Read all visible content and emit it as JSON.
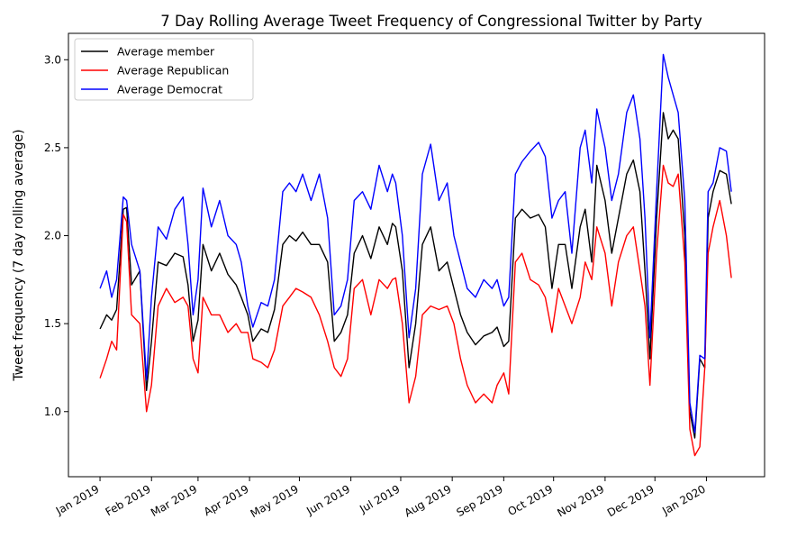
{
  "chart_data": {
    "type": "line",
    "title": "7 Day Rolling Average Tweet Frequency of Congressional Twitter by Party",
    "xlabel": "",
    "ylabel": "Tweet frequency (7 day rolling average)",
    "ylim": [
      0.63,
      3.15
    ],
    "xlim": [
      "2018-12-13",
      "2020-02-05"
    ],
    "yticks": [
      1.0,
      1.5,
      2.0,
      2.5,
      3.0
    ],
    "ytick_labels": [
      "1.0",
      "1.5",
      "2.0",
      "2.5",
      "3.0"
    ],
    "xticks": [
      "2019-01-01",
      "2019-02-01",
      "2019-03-01",
      "2019-04-01",
      "2019-05-01",
      "2019-06-01",
      "2019-07-01",
      "2019-08-01",
      "2019-09-01",
      "2019-10-01",
      "2019-11-01",
      "2019-12-01",
      "2020-01-01"
    ],
    "xtick_labels": [
      "Jan 2019",
      "Feb 2019",
      "Mar 2019",
      "Apr 2019",
      "May 2019",
      "Jun 2019",
      "Jul 2019",
      "Aug 2019",
      "Sep 2019",
      "Oct 2019",
      "Nov 2019",
      "Dec 2019",
      "Jan 2020"
    ],
    "legend": {
      "position": "upper-left",
      "frame": true
    },
    "grid": false,
    "x": [
      "2019-01-01",
      "2019-01-05",
      "2019-01-08",
      "2019-01-11",
      "2019-01-15",
      "2019-01-17",
      "2019-01-20",
      "2019-01-25",
      "2019-01-29",
      "2019-02-01",
      "2019-02-05",
      "2019-02-10",
      "2019-02-15",
      "2019-02-20",
      "2019-02-23",
      "2019-02-26",
      "2019-03-01",
      "2019-03-04",
      "2019-03-09",
      "2019-03-14",
      "2019-03-19",
      "2019-03-24",
      "2019-03-27",
      "2019-03-31",
      "2019-04-03",
      "2019-04-08",
      "2019-04-12",
      "2019-04-16",
      "2019-04-21",
      "2019-04-25",
      "2019-04-29",
      "2019-05-03",
      "2019-05-08",
      "2019-05-13",
      "2019-05-18",
      "2019-05-22",
      "2019-05-26",
      "2019-05-30",
      "2019-06-03",
      "2019-06-08",
      "2019-06-13",
      "2019-06-18",
      "2019-06-23",
      "2019-06-26",
      "2019-06-28",
      "2019-07-02",
      "2019-07-06",
      "2019-07-10",
      "2019-07-14",
      "2019-07-19",
      "2019-07-24",
      "2019-07-29",
      "2019-08-02",
      "2019-08-06",
      "2019-08-10",
      "2019-08-15",
      "2019-08-20",
      "2019-08-25",
      "2019-08-28",
      "2019-09-01",
      "2019-09-04",
      "2019-09-08",
      "2019-09-12",
      "2019-09-17",
      "2019-09-22",
      "2019-09-26",
      "2019-09-30",
      "2019-10-04",
      "2019-10-08",
      "2019-10-12",
      "2019-10-17",
      "2019-10-20",
      "2019-10-24",
      "2019-10-27",
      "2019-11-01",
      "2019-11-05",
      "2019-11-09",
      "2019-11-14",
      "2019-11-18",
      "2019-11-22",
      "2019-11-25",
      "2019-11-28",
      "2019-12-02",
      "2019-12-06",
      "2019-12-09",
      "2019-12-12",
      "2019-12-15",
      "2019-12-19",
      "2019-12-22",
      "2019-12-25",
      "2019-12-28",
      "2019-12-31",
      "2020-01-02",
      "2020-01-05",
      "2020-01-09",
      "2020-01-13",
      "2020-01-16"
    ],
    "series": [
      {
        "name": "Average member",
        "color": "#000000",
        "values": [
          1.47,
          1.55,
          1.52,
          1.58,
          2.15,
          2.16,
          1.72,
          1.8,
          1.12,
          1.4,
          1.85,
          1.83,
          1.9,
          1.88,
          1.72,
          1.4,
          1.52,
          1.95,
          1.8,
          1.9,
          1.78,
          1.72,
          1.65,
          1.55,
          1.4,
          1.47,
          1.45,
          1.58,
          1.95,
          2.0,
          1.97,
          2.02,
          1.95,
          1.95,
          1.85,
          1.4,
          1.45,
          1.55,
          1.9,
          2.0,
          1.87,
          2.05,
          1.95,
          2.07,
          2.05,
          1.8,
          1.25,
          1.5,
          1.95,
          2.05,
          1.8,
          1.85,
          1.7,
          1.55,
          1.45,
          1.38,
          1.43,
          1.45,
          1.48,
          1.37,
          1.4,
          2.1,
          2.15,
          2.1,
          2.12,
          2.05,
          1.7,
          1.95,
          1.95,
          1.7,
          2.05,
          2.15,
          1.85,
          2.4,
          2.2,
          1.9,
          2.1,
          2.35,
          2.43,
          2.25,
          1.8,
          1.3,
          2.1,
          2.7,
          2.55,
          2.6,
          2.55,
          2.0,
          1.0,
          0.85,
          1.3,
          1.25,
          2.1,
          2.25,
          2.37,
          2.35,
          2.18
        ]
      },
      {
        "name": "Average Republican",
        "color": "#ff0000",
        "values": [
          1.19,
          1.3,
          1.4,
          1.35,
          2.12,
          2.08,
          1.55,
          1.5,
          1.0,
          1.15,
          1.6,
          1.7,
          1.62,
          1.65,
          1.6,
          1.3,
          1.22,
          1.65,
          1.55,
          1.55,
          1.45,
          1.5,
          1.45,
          1.45,
          1.3,
          1.28,
          1.25,
          1.35,
          1.6,
          1.65,
          1.7,
          1.68,
          1.65,
          1.55,
          1.4,
          1.25,
          1.2,
          1.3,
          1.7,
          1.75,
          1.55,
          1.75,
          1.7,
          1.75,
          1.76,
          1.5,
          1.05,
          1.2,
          1.55,
          1.6,
          1.58,
          1.6,
          1.5,
          1.3,
          1.15,
          1.05,
          1.1,
          1.05,
          1.15,
          1.22,
          1.1,
          1.85,
          1.9,
          1.75,
          1.72,
          1.65,
          1.45,
          1.7,
          1.6,
          1.5,
          1.65,
          1.85,
          1.75,
          2.05,
          1.9,
          1.6,
          1.85,
          2.0,
          2.05,
          1.8,
          1.6,
          1.15,
          1.9,
          2.4,
          2.3,
          2.28,
          2.35,
          1.85,
          0.9,
          0.75,
          0.8,
          1.25,
          1.9,
          2.05,
          2.2,
          2.0,
          1.76
        ]
      },
      {
        "name": "Average Democrat",
        "color": "#0000ff",
        "values": [
          1.7,
          1.8,
          1.65,
          1.75,
          2.22,
          2.2,
          1.95,
          1.8,
          1.18,
          1.65,
          2.05,
          1.98,
          2.15,
          2.22,
          1.95,
          1.55,
          1.75,
          2.27,
          2.05,
          2.2,
          2.0,
          1.95,
          1.85,
          1.6,
          1.48,
          1.62,
          1.6,
          1.75,
          2.25,
          2.3,
          2.25,
          2.35,
          2.2,
          2.35,
          2.1,
          1.55,
          1.6,
          1.75,
          2.2,
          2.25,
          2.15,
          2.4,
          2.25,
          2.35,
          2.3,
          2.0,
          1.42,
          1.7,
          2.35,
          2.52,
          2.2,
          2.3,
          2.0,
          1.85,
          1.7,
          1.65,
          1.75,
          1.7,
          1.75,
          1.6,
          1.65,
          2.35,
          2.42,
          2.48,
          2.53,
          2.45,
          2.1,
          2.2,
          2.25,
          1.9,
          2.5,
          2.6,
          2.3,
          2.72,
          2.5,
          2.2,
          2.35,
          2.7,
          2.8,
          2.55,
          2.1,
          1.42,
          2.25,
          3.03,
          2.9,
          2.8,
          2.7,
          2.2,
          1.05,
          0.88,
          1.32,
          1.3,
          2.25,
          2.3,
          2.5,
          2.48,
          2.25
        ]
      }
    ]
  }
}
